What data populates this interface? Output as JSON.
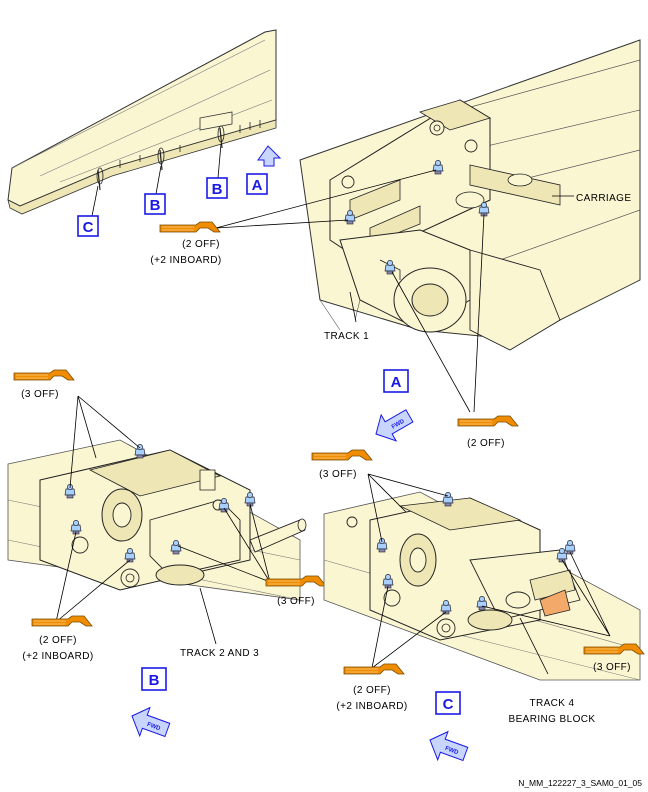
{
  "detail_refs": {
    "wing_c": "C",
    "wing_b1": "B",
    "wing_b2": "B",
    "wing_a": "A",
    "view_a": "A",
    "view_b": "B",
    "view_c": "C"
  },
  "labels": {
    "carriage": "CARRIAGE",
    "track1": "TRACK 1",
    "track2and3": "TRACK 2 AND 3",
    "track4_l1": "TRACK 4",
    "track4_l2": "BEARING BLOCK",
    "fwd": "FWD"
  },
  "quantities": {
    "a_top_l1": "(2 OFF)",
    "a_top_l2": "(+2 INBOARD)",
    "a_bottom": "(2 OFF)",
    "b_top": "(3 OFF)",
    "b_right": "(3 OFF)",
    "b_left_l1": "(2 OFF)",
    "b_left_l2": "(+2 INBOARD)",
    "c_top": "(3 OFF)",
    "c_right": "(3 OFF)",
    "c_left_l1": "(2 OFF)",
    "c_left_l2": "(+2 INBOARD)"
  },
  "figure_ref": "N_MM_122227_3_SAM0_01_05",
  "icons": [
    "grease-gun-icon",
    "fwd-arrow-icon",
    "up-arrow-icon",
    "grease-nipple-icon"
  ],
  "colors": {
    "part_fill": "#fbf6d2",
    "part_shade": "#eee6b4",
    "callout_blue": "#1a1ae6",
    "grease_gun_orange": "#f08c00",
    "fwd_arrow_fill": "#c8d6ff",
    "nipple_fill": "#a8d0ff"
  }
}
